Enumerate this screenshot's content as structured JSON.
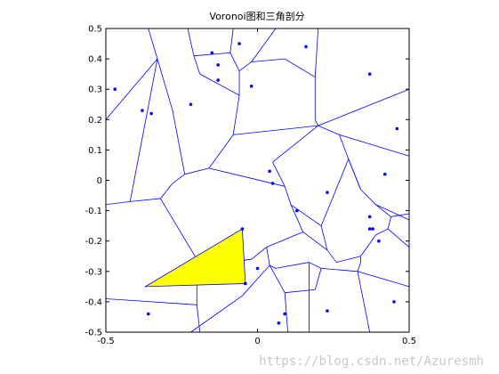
{
  "chart_data": {
    "type": "scatter",
    "title": "Voronoi图和三角剖分",
    "xlim": [
      -0.5,
      0.5
    ],
    "ylim": [
      -0.5,
      0.5
    ],
    "xticks": [
      "-0.5",
      "0",
      "0.5"
    ],
    "yticks": [
      "0.5",
      "0.4",
      "0.3",
      "0.2",
      "0.1",
      "0",
      "-0.1",
      "-0.2",
      "-0.3",
      "-0.4",
      "-0.5"
    ],
    "grid": false,
    "colors": {
      "points": "#0000ff",
      "edges": "#0000ff",
      "triangle_fill": "#ffff00",
      "triangle_edge": "#0000ff"
    },
    "series": [
      {
        "x": [
          -0.47,
          -0.38,
          -0.35,
          -0.22,
          -0.15,
          -0.13,
          -0.13,
          -0.06,
          -0.02,
          0.16,
          0.37,
          0.04,
          0.05,
          0.13,
          0.23,
          0.42,
          0.46,
          0.37,
          0.37,
          0.38,
          0.4,
          -0.05,
          -0.04,
          0.0,
          -0.36,
          0.23,
          0.45,
          0.09,
          0.07
        ],
        "y": [
          0.3,
          0.23,
          0.22,
          0.25,
          0.42,
          0.38,
          0.33,
          0.45,
          0.31,
          0.44,
          0.35,
          0.03,
          -0.01,
          -0.1,
          -0.04,
          0.02,
          0.17,
          -0.12,
          -0.16,
          -0.16,
          -0.2,
          -0.16,
          -0.34,
          -0.29,
          -0.44,
          -0.43,
          -0.4,
          -0.44,
          -0.47
        ]
      }
    ],
    "triangle": {
      "x": [
        -0.37,
        -0.05,
        -0.04
      ],
      "y": [
        -0.35,
        -0.16,
        -0.34
      ]
    },
    "voronoi_edges": [
      [
        [
          -0.5,
          0.2
        ],
        [
          -0.33,
          0.4
        ]
      ],
      [
        [
          -0.33,
          0.4
        ],
        [
          -0.36,
          0.5
        ]
      ],
      [
        [
          -0.33,
          0.4
        ],
        [
          -0.28,
          0.23
        ]
      ],
      [
        [
          -0.28,
          0.23
        ],
        [
          -0.24,
          0.02
        ]
      ],
      [
        [
          -0.33,
          0.4
        ],
        [
          -0.42,
          -0.07
        ]
      ],
      [
        [
          -0.42,
          -0.07
        ],
        [
          -0.5,
          -0.08
        ]
      ],
      [
        [
          -0.42,
          -0.07
        ],
        [
          -0.32,
          -0.06
        ]
      ],
      [
        [
          -0.32,
          -0.06
        ],
        [
          -0.28,
          -0.01
        ]
      ],
      [
        [
          -0.28,
          -0.01
        ],
        [
          -0.24,
          0.02
        ]
      ],
      [
        [
          -0.24,
          0.02
        ],
        [
          -0.16,
          0.04
        ]
      ],
      [
        [
          -0.16,
          0.04
        ],
        [
          -0.08,
          0.15
        ]
      ],
      [
        [
          -0.08,
          0.15
        ],
        [
          -0.06,
          0.28
        ]
      ],
      [
        [
          -0.06,
          0.28
        ],
        [
          -0.19,
          0.35
        ]
      ],
      [
        [
          -0.19,
          0.35
        ],
        [
          -0.21,
          0.41
        ]
      ],
      [
        [
          -0.21,
          0.41
        ],
        [
          -0.23,
          0.5
        ]
      ],
      [
        [
          -0.21,
          0.41
        ],
        [
          -0.09,
          0.42
        ]
      ],
      [
        [
          -0.09,
          0.42
        ],
        [
          -0.06,
          0.36
        ]
      ],
      [
        [
          -0.06,
          0.36
        ],
        [
          -0.06,
          0.28
        ]
      ],
      [
        [
          -0.09,
          0.42
        ],
        [
          -0.08,
          0.5
        ]
      ],
      [
        [
          -0.06,
          0.36
        ],
        [
          -0.02,
          0.39
        ]
      ],
      [
        [
          -0.02,
          0.39
        ],
        [
          0.06,
          0.5
        ]
      ],
      [
        [
          -0.02,
          0.39
        ],
        [
          0.09,
          0.4
        ]
      ],
      [
        [
          0.09,
          0.4
        ],
        [
          0.19,
          0.34
        ]
      ],
      [
        [
          0.19,
          0.34
        ],
        [
          0.2,
          0.5
        ]
      ],
      [
        [
          0.19,
          0.34
        ],
        [
          0.19,
          0.2
        ]
      ],
      [
        [
          0.19,
          0.2
        ],
        [
          0.2,
          0.18
        ]
      ],
      [
        [
          0.2,
          0.18
        ],
        [
          0.5,
          0.3
        ]
      ],
      [
        [
          -0.08,
          0.15
        ],
        [
          0.2,
          0.18
        ]
      ],
      [
        [
          0.2,
          0.18
        ],
        [
          0.27,
          0.15
        ]
      ],
      [
        [
          0.27,
          0.15
        ],
        [
          0.5,
          0.08
        ]
      ],
      [
        [
          0.27,
          0.15
        ],
        [
          0.3,
          0.07
        ]
      ],
      [
        [
          0.3,
          0.07
        ],
        [
          0.34,
          -0.03
        ]
      ],
      [
        [
          0.34,
          -0.03
        ],
        [
          0.39,
          -0.08
        ]
      ],
      [
        [
          0.39,
          -0.08
        ],
        [
          0.5,
          -0.13
        ]
      ],
      [
        [
          0.39,
          -0.08
        ],
        [
          0.44,
          -0.12
        ]
      ],
      [
        [
          0.44,
          -0.12
        ],
        [
          0.5,
          -0.11
        ]
      ],
      [
        [
          0.44,
          -0.12
        ],
        [
          0.43,
          -0.16
        ]
      ],
      [
        [
          0.43,
          -0.16
        ],
        [
          0.5,
          -0.22
        ]
      ],
      [
        [
          0.43,
          -0.16
        ],
        [
          0.39,
          -0.18
        ]
      ],
      [
        [
          0.39,
          -0.18
        ],
        [
          0.34,
          -0.25
        ]
      ],
      [
        [
          0.34,
          -0.25
        ],
        [
          0.26,
          -0.27
        ]
      ],
      [
        [
          0.26,
          -0.27
        ],
        [
          0.23,
          -0.23
        ]
      ],
      [
        [
          0.23,
          -0.23
        ],
        [
          0.21,
          -0.15
        ]
      ],
      [
        [
          0.21,
          -0.15
        ],
        [
          0.11,
          -0.08
        ]
      ],
      [
        [
          0.11,
          -0.08
        ],
        [
          0.09,
          -0.02
        ]
      ],
      [
        [
          0.09,
          -0.02
        ],
        [
          0.05,
          0.06
        ]
      ],
      [
        [
          0.05,
          0.06
        ],
        [
          0.2,
          0.18
        ]
      ],
      [
        [
          0.21,
          -0.15
        ],
        [
          0.3,
          0.07
        ]
      ],
      [
        [
          0.3,
          0.07
        ],
        [
          0.34,
          -0.03
        ]
      ],
      [
        [
          0.34,
          -0.25
        ],
        [
          0.34,
          -0.27
        ]
      ],
      [
        [
          0.34,
          -0.27
        ],
        [
          0.33,
          -0.3
        ]
      ],
      [
        [
          0.33,
          -0.3
        ],
        [
          0.5,
          -0.35
        ]
      ],
      [
        [
          0.33,
          -0.3
        ],
        [
          0.37,
          -0.5
        ]
      ],
      [
        [
          0.33,
          -0.3
        ],
        [
          0.21,
          -0.29
        ]
      ],
      [
        [
          0.21,
          -0.29
        ],
        [
          0.17,
          -0.27
        ]
      ],
      [
        [
          0.17,
          -0.27
        ],
        [
          0.17,
          -0.5
        ]
      ],
      [
        [
          0.17,
          -0.27
        ],
        [
          0.06,
          -0.29
        ]
      ],
      [
        [
          0.06,
          -0.29
        ],
        [
          0.04,
          -0.28
        ]
      ],
      [
        [
          0.04,
          -0.28
        ],
        [
          0.09,
          -0.37
        ]
      ],
      [
        [
          0.09,
          -0.37
        ],
        [
          0.19,
          -0.36
        ]
      ],
      [
        [
          0.09,
          -0.37
        ],
        [
          0.1,
          -0.5
        ]
      ],
      [
        [
          0.04,
          -0.28
        ],
        [
          -0.05,
          -0.38
        ]
      ],
      [
        [
          -0.05,
          -0.38
        ],
        [
          -0.22,
          -0.5
        ]
      ],
      [
        [
          0.11,
          -0.08
        ],
        [
          0.15,
          -0.17
        ]
      ],
      [
        [
          0.15,
          -0.17
        ],
        [
          0.03,
          -0.22
        ]
      ],
      [
        [
          0.03,
          -0.22
        ],
        [
          0.04,
          -0.28
        ]
      ],
      [
        [
          0.03,
          -0.22
        ],
        [
          -0.02,
          -0.26
        ]
      ],
      [
        [
          -0.02,
          -0.26
        ],
        [
          -0.09,
          -0.27
        ]
      ],
      [
        [
          -0.09,
          -0.27
        ],
        [
          -0.2,
          -0.26
        ]
      ],
      [
        [
          -0.2,
          -0.26
        ],
        [
          -0.2,
          -0.41
        ]
      ],
      [
        [
          -0.2,
          -0.41
        ],
        [
          -0.19,
          -0.5
        ]
      ],
      [
        [
          -0.2,
          -0.41
        ],
        [
          -0.5,
          -0.39
        ]
      ],
      [
        [
          -0.2,
          -0.26
        ],
        [
          -0.32,
          -0.06
        ]
      ],
      [
        [
          0.09,
          -0.02
        ],
        [
          -0.16,
          0.04
        ]
      ],
      [
        [
          0.15,
          -0.17
        ],
        [
          0.23,
          -0.23
        ]
      ],
      [
        [
          0.19,
          -0.36
        ],
        [
          0.21,
          -0.29
        ]
      ],
      [
        [
          -0.09,
          -0.27
        ],
        [
          -0.02,
          -0.26
        ]
      ]
    ]
  }
}
